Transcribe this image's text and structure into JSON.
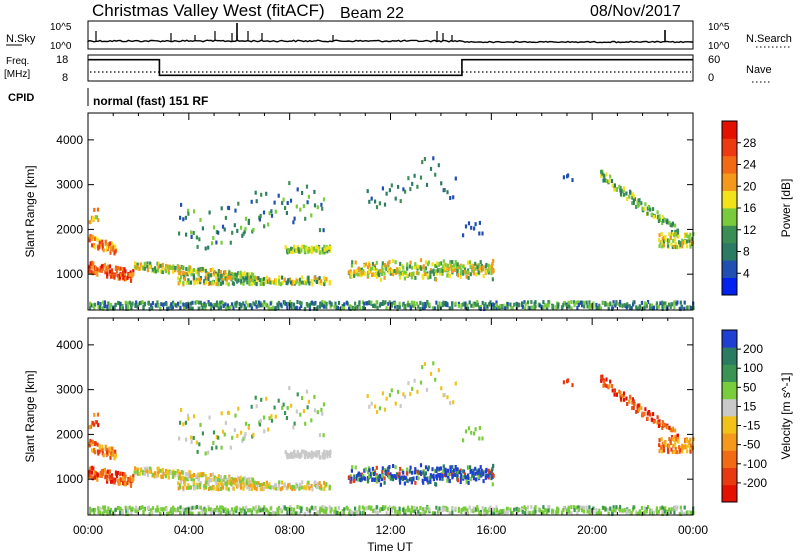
{
  "header": {
    "radar": "Christmas Valley West (fitACF)",
    "beam": "Beam 22",
    "date": "08/Nov/2017"
  },
  "nsky": {
    "label": "N.Sky",
    "ytick_top": "10^5",
    "ytick_bottom": "10^0",
    "right_label": "N.Search",
    "right_tick_top": "10^5",
    "right_tick_bottom": "10^0"
  },
  "freq": {
    "label_line1": "Freq.",
    "label_line2": "[MHz]",
    "ytick_top": "18",
    "ytick_bottom": "8",
    "right_label": "Nave",
    "right_tick_top": "60",
    "right_tick_bottom": "0"
  },
  "cpid": {
    "label": "CPID",
    "text": "normal (fast) 151 RF"
  },
  "colors": {
    "power_scale": [
      "#0022ee",
      "#1f4fb0",
      "#2a7a64",
      "#3a8e54",
      "#7acb3c",
      "#f2e21a",
      "#f39a1c",
      "#f26a14",
      "#ee3a10",
      "#e41000"
    ],
    "velocity_scale": [
      "#1f3fd2",
      "#2b7a62",
      "#3a9454",
      "#79cc3c",
      "#c9c9c9",
      "#f2c218",
      "#f39a1c",
      "#f26a14",
      "#e83a10",
      "#e41000"
    ]
  },
  "chart_data": [
    {
      "type": "line",
      "name": "N.Sky / N.Search",
      "x": [
        "00:00",
        "04:00",
        "08:00",
        "12:00",
        "16:00",
        "20:00",
        "00:00"
      ],
      "ylabel": "N.Sky",
      "y2label": "N.Search",
      "ylim_ticks": [
        "10^0",
        "10^5"
      ]
    },
    {
      "type": "line",
      "name": "Freq / Nave",
      "x": [
        "00:00",
        "04:00",
        "08:00",
        "12:00",
        "16:00",
        "20:00",
        "00:00"
      ],
      "ylabel": "Freq. [MHz]",
      "ylim": [
        8,
        18
      ],
      "y2label": "Nave",
      "y2lim": [
        0,
        60
      ],
      "freq_steps": [
        {
          "x": "00:00",
          "y": 16.2
        },
        {
          "x": "02:50",
          "y": 10.2
        },
        {
          "x": "14:50",
          "y": 16.2
        },
        {
          "x": "00:00",
          "y": 16.2
        }
      ]
    },
    {
      "type": "heatmap",
      "name": "Power",
      "xlabel": "",
      "ylabel": "Slant Range [km]",
      "x_ticks": [
        "00:00",
        "04:00",
        "08:00",
        "12:00",
        "16:00",
        "20:00",
        "00:00"
      ],
      "y_ticks": [
        1000,
        2000,
        3000,
        4000
      ],
      "ylim": [
        200,
        4600
      ],
      "colorbar_label": "Power [dB]",
      "colorbar_ticks": [
        4,
        8,
        12,
        16,
        20,
        24,
        28
      ]
    },
    {
      "type": "heatmap",
      "name": "Velocity",
      "xlabel": "Time UT",
      "ylabel": "Slant Range [km]",
      "x_ticks": [
        "00:00",
        "04:00",
        "08:00",
        "12:00",
        "16:00",
        "20:00",
        "00:00"
      ],
      "y_ticks": [
        1000,
        2000,
        3000,
        4000
      ],
      "ylim": [
        200,
        4600
      ],
      "colorbar_label": "Velocity [m s^-1]",
      "colorbar_ticks": [
        200,
        100,
        50,
        15,
        -15,
        -50,
        -100,
        -200
      ]
    }
  ]
}
